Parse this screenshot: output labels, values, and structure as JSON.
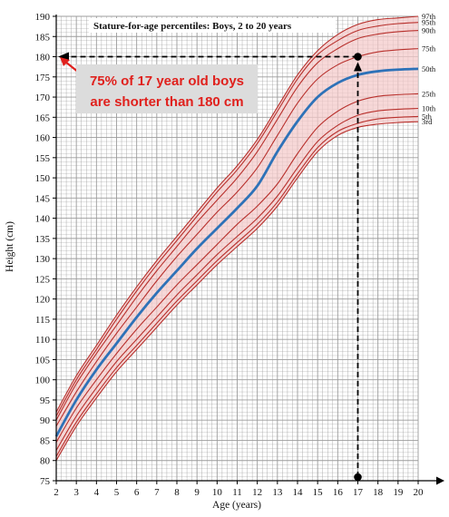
{
  "chart_data": {
    "type": "line",
    "title": "Stature-for-age percentiles: Boys, 2 to 20 years",
    "xlabel": "Age (years)",
    "ylabel": "Height (cm)",
    "xlim": [
      2,
      20
    ],
    "ylim": [
      75,
      190
    ],
    "x_ticks": [
      2,
      3,
      4,
      5,
      6,
      7,
      8,
      9,
      10,
      11,
      12,
      13,
      14,
      15,
      16,
      17,
      18,
      19,
      20
    ],
    "y_ticks": [
      75,
      80,
      85,
      90,
      95,
      100,
      105,
      110,
      115,
      120,
      125,
      130,
      135,
      140,
      145,
      150,
      155,
      160,
      165,
      170,
      175,
      180,
      185,
      190
    ],
    "grid": true,
    "x": [
      2,
      3,
      4,
      5,
      6,
      7,
      8,
      9,
      10,
      11,
      12,
      13,
      14,
      15,
      16,
      17,
      18,
      19,
      20
    ],
    "series": [
      {
        "name": "3rd",
        "values": [
          80.0,
          88.5,
          95.5,
          102.0,
          107.5,
          113.0,
          118.5,
          123.5,
          128.5,
          133.0,
          137.5,
          143.0,
          150.0,
          156.5,
          160.5,
          162.5,
          163.3,
          163.7,
          163.9
        ]
      },
      {
        "name": "5th",
        "values": [
          81.0,
          89.5,
          96.5,
          103.0,
          108.5,
          114.0,
          119.5,
          124.5,
          129.5,
          134.0,
          138.5,
          144.0,
          151.0,
          157.5,
          161.5,
          163.5,
          164.6,
          165.0,
          165.2
        ]
      },
      {
        "name": "10th",
        "values": [
          82.5,
          91.0,
          98.0,
          104.5,
          110.0,
          115.5,
          121.0,
          126.0,
          131.0,
          135.5,
          140.0,
          145.5,
          152.5,
          159.0,
          163.0,
          165.5,
          166.6,
          167.0,
          167.2
        ]
      },
      {
        "name": "25th",
        "values": [
          84.5,
          93.0,
          100.0,
          106.5,
          112.5,
          118.0,
          123.5,
          128.5,
          133.5,
          138.5,
          143.0,
          148.5,
          156.0,
          162.5,
          166.5,
          169.0,
          170.2,
          170.6,
          170.8
        ]
      },
      {
        "name": "50th",
        "values": [
          86.0,
          95.0,
          102.5,
          109.0,
          115.5,
          121.5,
          127.0,
          132.5,
          137.5,
          142.5,
          148.0,
          156.5,
          164.0,
          170.0,
          173.5,
          175.5,
          176.4,
          176.8,
          177.0
        ]
      },
      {
        "name": "75th",
        "values": [
          88.5,
          97.0,
          104.5,
          111.5,
          118.0,
          124.5,
          130.5,
          136.0,
          141.5,
          146.5,
          152.5,
          160.5,
          168.5,
          174.5,
          178.0,
          180.0,
          181.2,
          181.7,
          182.0
        ]
      },
      {
        "name": "90th",
        "values": [
          90.0,
          99.0,
          106.5,
          113.5,
          120.5,
          127.0,
          133.0,
          139.0,
          144.5,
          150.0,
          156.5,
          164.5,
          172.5,
          178.5,
          182.0,
          184.5,
          185.6,
          186.2,
          186.5
        ]
      },
      {
        "name": "95th",
        "values": [
          91.0,
          100.0,
          107.5,
          115.0,
          122.0,
          128.5,
          134.5,
          140.5,
          146.5,
          152.0,
          158.5,
          166.5,
          174.5,
          180.5,
          184.0,
          186.5,
          187.6,
          188.2,
          188.5
        ]
      },
      {
        "name": "97th",
        "values": [
          92.0,
          101.0,
          108.5,
          116.0,
          123.0,
          129.5,
          135.5,
          141.5,
          147.5,
          153.0,
          159.5,
          167.5,
          175.5,
          181.5,
          185.5,
          188.0,
          189.2,
          189.6,
          190.0
        ]
      }
    ],
    "highlight_series": "50th",
    "annotation": {
      "text_lines": [
        "75% of 17 year old boys",
        "are shorter than 180 cm"
      ],
      "point": {
        "x": 17,
        "y": 180
      }
    },
    "colors": {
      "band_fill": "#f4c9c9",
      "percentile_line": "#b8302c",
      "median_line": "#2e72b8",
      "grid": "#9c9c9c",
      "callout_text": "#e0211d",
      "callout_box": "#dcdcdc",
      "guide_line": "#000000"
    }
  }
}
